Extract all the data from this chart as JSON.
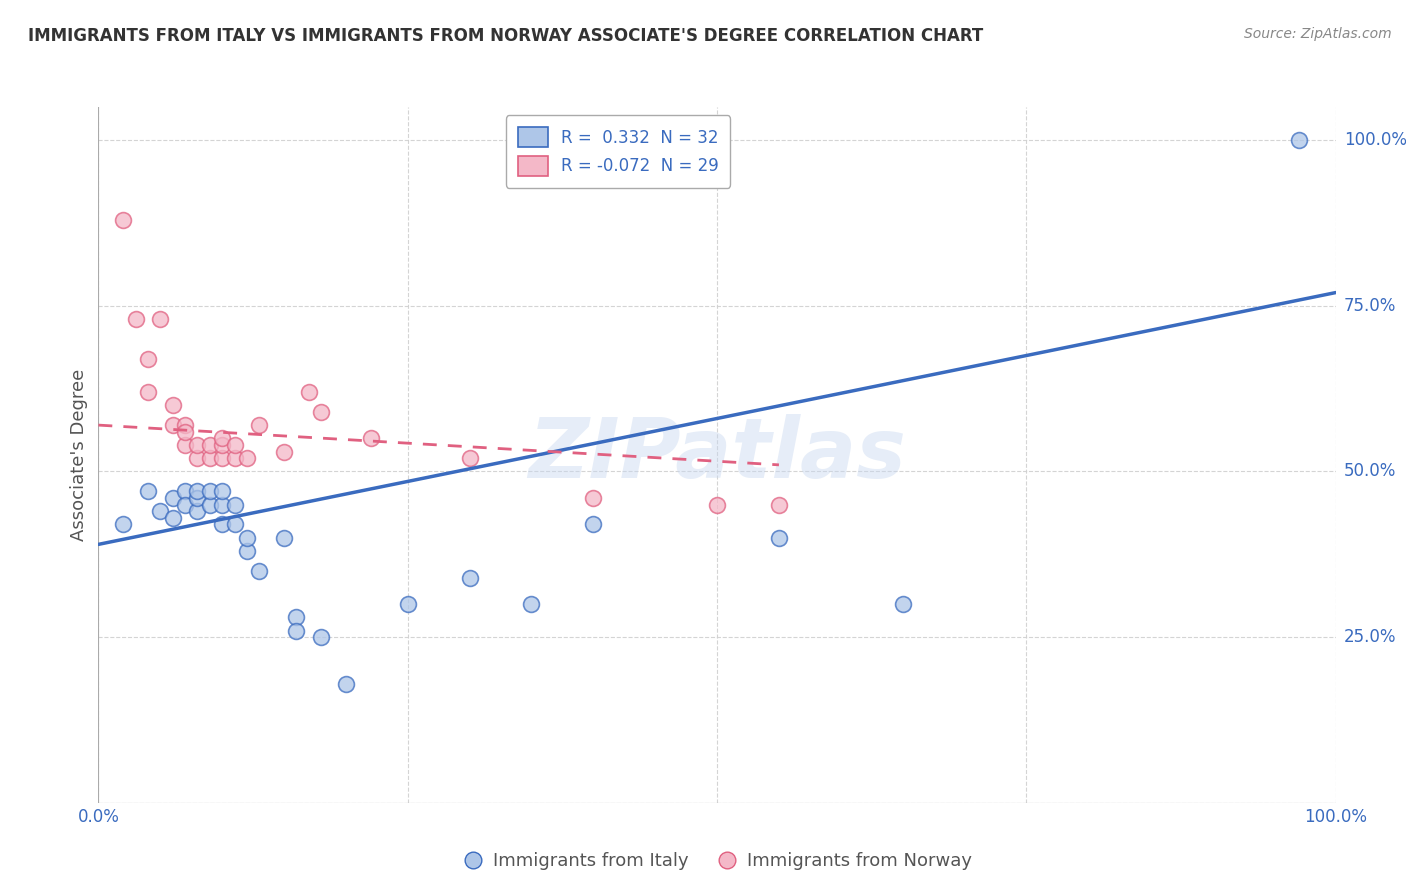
{
  "title": "IMMIGRANTS FROM ITALY VS IMMIGRANTS FROM NORWAY ASSOCIATE'S DEGREE CORRELATION CHART",
  "source": "Source: ZipAtlas.com",
  "ylabel": "Associate's Degree",
  "xlabel": "",
  "bg_color": "#ffffff",
  "grid_color": "#d0d0d0",
  "italy_color": "#aec6e8",
  "norway_color": "#f4b8c8",
  "italy_line_color": "#3a6bbf",
  "norway_line_color": "#e06080",
  "italy_R": 0.332,
  "italy_N": 32,
  "norway_R": -0.072,
  "norway_N": 29,
  "xmin": 0.0,
  "xmax": 1.0,
  "ymin": 0.0,
  "ymax": 1.05,
  "italy_x": [
    0.02,
    0.04,
    0.05,
    0.06,
    0.06,
    0.07,
    0.07,
    0.08,
    0.08,
    0.08,
    0.09,
    0.09,
    0.1,
    0.1,
    0.1,
    0.11,
    0.11,
    0.12,
    0.12,
    0.13,
    0.15,
    0.16,
    0.16,
    0.18,
    0.2,
    0.25,
    0.3,
    0.35,
    0.4,
    0.55,
    0.65,
    0.97
  ],
  "italy_y": [
    0.42,
    0.47,
    0.44,
    0.46,
    0.43,
    0.47,
    0.45,
    0.44,
    0.46,
    0.47,
    0.45,
    0.47,
    0.42,
    0.45,
    0.47,
    0.42,
    0.45,
    0.38,
    0.4,
    0.35,
    0.4,
    0.28,
    0.26,
    0.25,
    0.18,
    0.3,
    0.34,
    0.3,
    0.42,
    0.4,
    0.3,
    1.0
  ],
  "norway_x": [
    0.02,
    0.03,
    0.04,
    0.04,
    0.05,
    0.06,
    0.06,
    0.07,
    0.07,
    0.07,
    0.08,
    0.08,
    0.09,
    0.09,
    0.1,
    0.1,
    0.1,
    0.11,
    0.11,
    0.12,
    0.13,
    0.15,
    0.17,
    0.18,
    0.22,
    0.3,
    0.4,
    0.5,
    0.55
  ],
  "norway_y": [
    0.88,
    0.73,
    0.62,
    0.67,
    0.73,
    0.6,
    0.57,
    0.57,
    0.54,
    0.56,
    0.52,
    0.54,
    0.52,
    0.54,
    0.52,
    0.54,
    0.55,
    0.52,
    0.54,
    0.52,
    0.57,
    0.53,
    0.62,
    0.59,
    0.55,
    0.52,
    0.46,
    0.45,
    0.45
  ],
  "xticks": [
    0.0,
    0.25,
    0.5,
    0.75,
    1.0
  ],
  "xtick_labels": [
    "0.0%",
    "",
    "",
    "",
    "100.0%"
  ],
  "ytick_right_positions": [
    0.25,
    0.5,
    0.75,
    1.0
  ],
  "ytick_right_labels": [
    "25.0%",
    "50.0%",
    "75.0%",
    "100.0%"
  ],
  "watermark_text": "ZIPatlas",
  "italy_line_x": [
    0.0,
    1.0
  ],
  "italy_line_y": [
    0.39,
    0.77
  ],
  "norway_line_x": [
    0.0,
    0.55
  ],
  "norway_line_y": [
    0.57,
    0.51
  ]
}
